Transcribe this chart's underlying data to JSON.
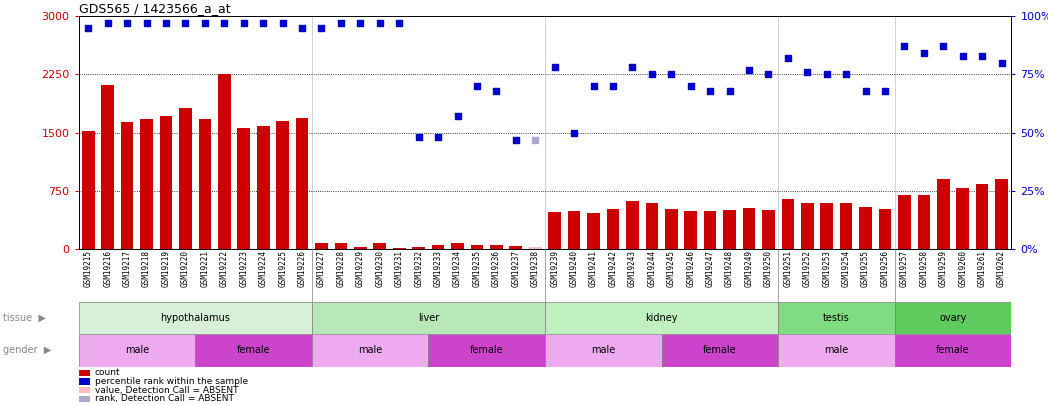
{
  "title": "GDS565 / 1423566_a_at",
  "samples": [
    "GSM19215",
    "GSM19216",
    "GSM19217",
    "GSM19218",
    "GSM19219",
    "GSM19220",
    "GSM19221",
    "GSM19222",
    "GSM19223",
    "GSM19224",
    "GSM19225",
    "GSM19226",
    "GSM19227",
    "GSM19228",
    "GSM19229",
    "GSM19230",
    "GSM19231",
    "GSM19232",
    "GSM19233",
    "GSM19234",
    "GSM19235",
    "GSM19236",
    "GSM19237",
    "GSM19238",
    "GSM19239",
    "GSM19240",
    "GSM19241",
    "GSM19242",
    "GSM19243",
    "GSM19244",
    "GSM19245",
    "GSM19246",
    "GSM19247",
    "GSM19248",
    "GSM19249",
    "GSM19250",
    "GSM19251",
    "GSM19252",
    "GSM19253",
    "GSM19254",
    "GSM19255",
    "GSM19256",
    "GSM19257",
    "GSM19258",
    "GSM19259",
    "GSM19260",
    "GSM19261",
    "GSM19262"
  ],
  "counts": [
    1520,
    2120,
    1640,
    1680,
    1720,
    1820,
    1680,
    2250,
    1560,
    1590,
    1650,
    1690,
    80,
    80,
    30,
    80,
    20,
    30,
    50,
    80,
    50,
    55,
    40,
    30,
    480,
    490,
    470,
    520,
    620,
    590,
    510,
    490,
    490,
    500,
    530,
    500,
    650,
    590,
    590,
    590,
    540,
    520,
    700,
    700,
    900,
    790,
    840,
    900
  ],
  "absent_mask": [
    false,
    false,
    false,
    false,
    false,
    false,
    false,
    false,
    false,
    false,
    false,
    false,
    false,
    false,
    false,
    false,
    false,
    false,
    false,
    false,
    false,
    false,
    false,
    true,
    false,
    false,
    false,
    false,
    false,
    false,
    false,
    false,
    false,
    false,
    false,
    false,
    false,
    false,
    false,
    false,
    false,
    false,
    false,
    false,
    false,
    false,
    false,
    false
  ],
  "percentile_ranks": [
    95,
    97,
    97,
    97,
    97,
    97,
    97,
    97,
    97,
    97,
    97,
    95,
    95,
    97,
    97,
    97,
    97,
    48,
    48,
    57,
    70,
    68,
    47,
    47,
    78,
    50,
    70,
    70,
    78,
    75,
    75,
    70,
    68,
    68,
    77,
    75,
    82,
    76,
    75,
    75,
    68,
    68,
    87,
    84,
    87,
    83,
    83,
    80
  ],
  "absent_rank_mask": [
    false,
    false,
    false,
    false,
    false,
    false,
    false,
    false,
    false,
    false,
    false,
    false,
    false,
    false,
    false,
    false,
    false,
    false,
    false,
    false,
    false,
    false,
    false,
    true,
    false,
    false,
    false,
    false,
    false,
    false,
    false,
    false,
    false,
    false,
    false,
    false,
    false,
    false,
    false,
    false,
    false,
    false,
    false,
    false,
    false,
    false,
    false,
    false
  ],
  "tissues": [
    {
      "label": "hypothalamus",
      "start": 0,
      "end": 12,
      "color": "#d8f0d8"
    },
    {
      "label": "liver",
      "start": 12,
      "end": 24,
      "color": "#b8e8b8"
    },
    {
      "label": "kidney",
      "start": 24,
      "end": 36,
      "color": "#c0f0c0"
    },
    {
      "label": "testis",
      "start": 36,
      "end": 42,
      "color": "#80dc80"
    },
    {
      "label": "ovary",
      "start": 42,
      "end": 48,
      "color": "#60cc60"
    }
  ],
  "genders": [
    {
      "label": "male",
      "start": 0,
      "end": 6,
      "color": "#eeaaee"
    },
    {
      "label": "female",
      "start": 6,
      "end": 12,
      "color": "#cc44cc"
    },
    {
      "label": "male",
      "start": 12,
      "end": 18,
      "color": "#eeaaee"
    },
    {
      "label": "female",
      "start": 18,
      "end": 24,
      "color": "#cc44cc"
    },
    {
      "label": "male",
      "start": 24,
      "end": 30,
      "color": "#eeaaee"
    },
    {
      "label": "female",
      "start": 30,
      "end": 36,
      "color": "#cc44cc"
    },
    {
      "label": "male",
      "start": 36,
      "end": 42,
      "color": "#eeaaee"
    },
    {
      "label": "female",
      "start": 42,
      "end": 48,
      "color": "#cc44cc"
    }
  ],
  "bar_color": "#cc0000",
  "absent_bar_color": "#ffbbbb",
  "dot_color": "#0000cc",
  "absent_dot_color": "#aaaacc",
  "ylim_left": [
    0,
    3000
  ],
  "ylim_right": [
    0,
    100
  ],
  "yticks_left": [
    0,
    750,
    1500,
    2250,
    3000
  ],
  "yticks_right": [
    0,
    25,
    50,
    75,
    100
  ],
  "left_color": "#cc0000",
  "right_color": "#0000cc"
}
